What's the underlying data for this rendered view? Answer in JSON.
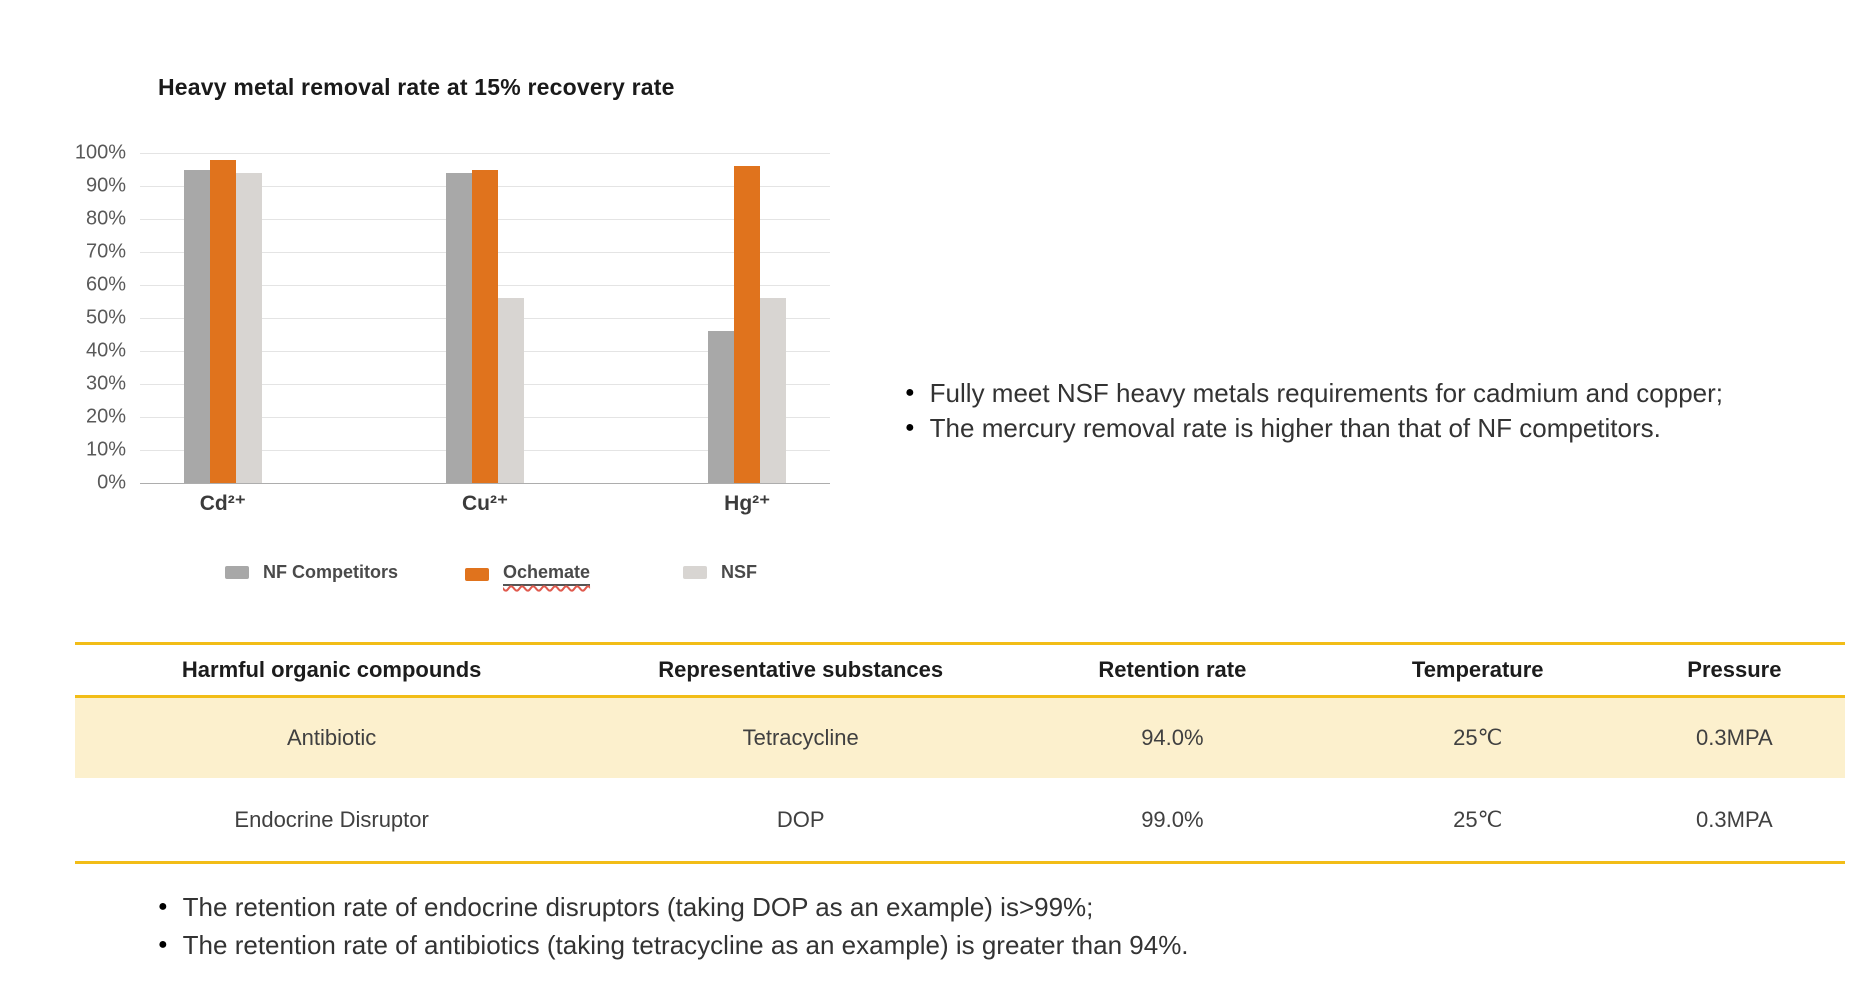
{
  "chart": {
    "title": "Heavy metal removal rate at 15% recovery rate"
  },
  "chart_data": [
    {
      "type": "bar",
      "title": "Heavy metal removal rate at 15% recovery rate",
      "categories": [
        "Cd²⁺",
        "Cu²⁺",
        "Hg²⁺"
      ],
      "series": [
        {
          "name": "NF Competitors",
          "color": "#a8a8a8",
          "values": [
            95,
            94,
            46
          ]
        },
        {
          "name": "Ochemate",
          "color": "#e0731d",
          "values": [
            98,
            95,
            96
          ],
          "underlined": true
        },
        {
          "name": "NSF",
          "color": "#d8d5d2",
          "values": [
            94,
            56,
            56
          ]
        }
      ],
      "xlabel": "",
      "ylabel": "",
      "ylim": [
        0,
        100
      ],
      "y_ticks": [
        "100%",
        "90%",
        "80%",
        "70%",
        "60%",
        "50%",
        "40%",
        "30%",
        "20%",
        "10%",
        "0%"
      ],
      "grid": true,
      "legend_position": "bottom"
    },
    {
      "type": "table",
      "headers": [
        "Harmful organic compounds",
        "Representative substances",
        "Retention rate",
        "Temperature",
        "Pressure"
      ],
      "rows": [
        [
          "Antibiotic",
          "Tetracycline",
          "94.0%",
          "25℃",
          "0.3MPA"
        ],
        [
          "Endocrine Disruptor",
          "DOP",
          "99.0%",
          "25℃",
          "0.3MPA"
        ]
      ]
    }
  ],
  "right_bullets": [
    "Fully meet NSF heavy metals requirements for cadmium and copper;",
    "The mercury removal rate is higher than that of NF competitors."
  ],
  "bottom_bullets": [
    "The retention rate of endocrine disruptors (taking DOP as an example) is>99%;",
    "The retention rate of antibiotics (taking tetracycline as an example) is greater than 94%."
  ],
  "colors": {
    "bar_nf_competitors": "#a8a8a8",
    "bar_ochemate": "#e0731d",
    "bar_nsf": "#d8d5d2",
    "table_line": "#f2bd17",
    "row_highlight": "#fcf0cd",
    "gridline": "#e4e4e4"
  }
}
